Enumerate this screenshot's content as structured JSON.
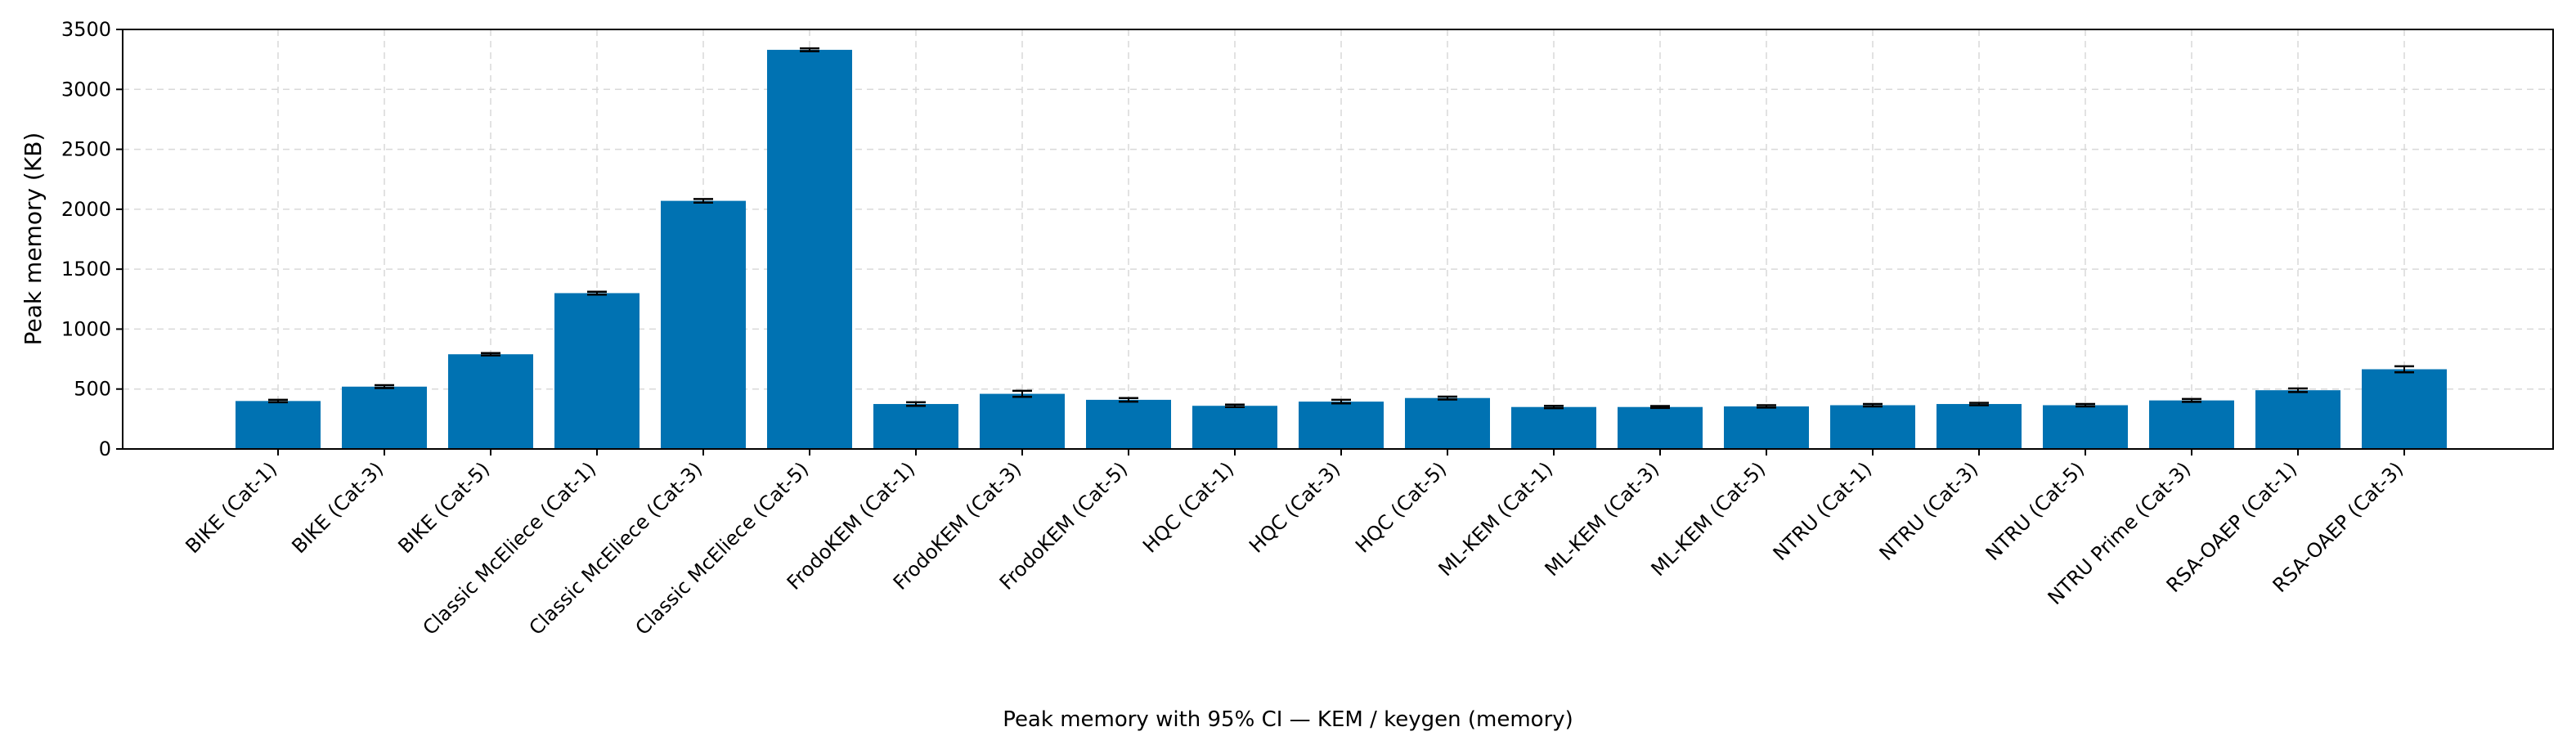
{
  "chart_data": {
    "type": "bar",
    "categories": [
      "BIKE (Cat-1)",
      "BIKE (Cat-3)",
      "BIKE (Cat-5)",
      "Classic McEliece (Cat-1)",
      "Classic McEliece (Cat-3)",
      "Classic McEliece (Cat-5)",
      "FrodoKEM (Cat-1)",
      "FrodoKEM (Cat-3)",
      "FrodoKEM (Cat-5)",
      "HQC (Cat-1)",
      "HQC (Cat-3)",
      "HQC (Cat-5)",
      "ML-KEM (Cat-1)",
      "ML-KEM (Cat-3)",
      "ML-KEM (Cat-5)",
      "NTRU (Cat-1)",
      "NTRU (Cat-3)",
      "NTRU (Cat-5)",
      "NTRU Prime (Cat-3)",
      "RSA-OAEP (Cat-1)",
      "RSA-OAEP (Cat-3)"
    ],
    "values": [
      400,
      520,
      790,
      1300,
      2070,
      3330,
      375,
      460,
      410,
      360,
      395,
      425,
      350,
      350,
      355,
      365,
      375,
      365,
      405,
      490,
      665
    ],
    "ci": [
      10,
      12,
      10,
      12,
      15,
      12,
      15,
      25,
      15,
      10,
      15,
      12,
      10,
      8,
      10,
      10,
      10,
      10,
      12,
      15,
      25
    ],
    "xlabel": "",
    "ylabel": "Peak memory (KB)",
    "ylim": [
      0,
      3500
    ],
    "yticks": [
      0,
      500,
      1000,
      1500,
      2000,
      2500,
      3000,
      3500
    ],
    "grid": true,
    "bar_color": "#0072b2",
    "caption": "Peak memory with 95% CI — KEM / keygen (memory)"
  }
}
